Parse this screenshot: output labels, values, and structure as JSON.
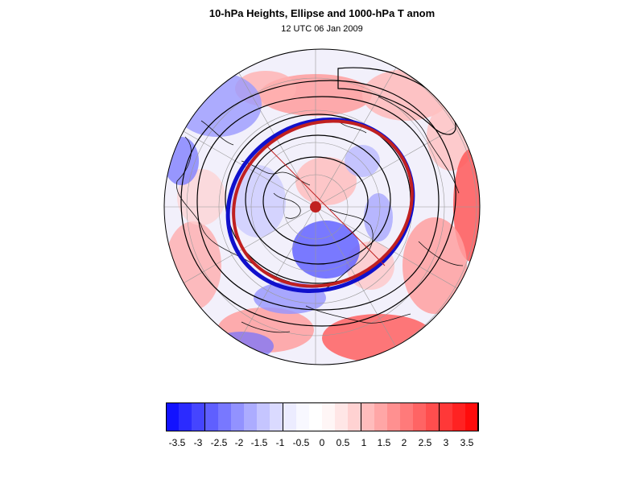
{
  "title": "10-hPa Heights, Ellipse and 1000-hPa T anom",
  "subtitle": "12 UTC 06 Jan 2009",
  "map": {
    "projection": "polar stereographic (north)",
    "fields": {
      "shaded": "1000-hPa T anom",
      "contours": "10-hPa Heights",
      "ellipse_colors": [
        "#cc2222",
        "#1010cc"
      ],
      "pole_marker_color": "#c02020"
    }
  },
  "colorbar": {
    "labels": [
      "-3.5",
      "-3",
      "-2.5",
      "-2",
      "-1.5",
      "-1",
      "-0.5",
      "0",
      "0.5",
      "1",
      "1.5",
      "2",
      "2.5",
      "3",
      "3.5"
    ],
    "colors": [
      "#1212ff",
      "#2b2bff",
      "#4545ff",
      "#5f5fff",
      "#7878ff",
      "#9292ff",
      "#acacff",
      "#c5c5ff",
      "#dadaff",
      "#ececff",
      "#f8f8ff",
      "#ffffff",
      "#fff6f6",
      "#ffe6e6",
      "#ffd2d2",
      "#ffbcbc",
      "#ffa6a6",
      "#ff9090",
      "#ff7a7a",
      "#ff6464",
      "#ff4e4e",
      "#ff3838",
      "#ff2222",
      "#ff0c0c"
    ]
  }
}
